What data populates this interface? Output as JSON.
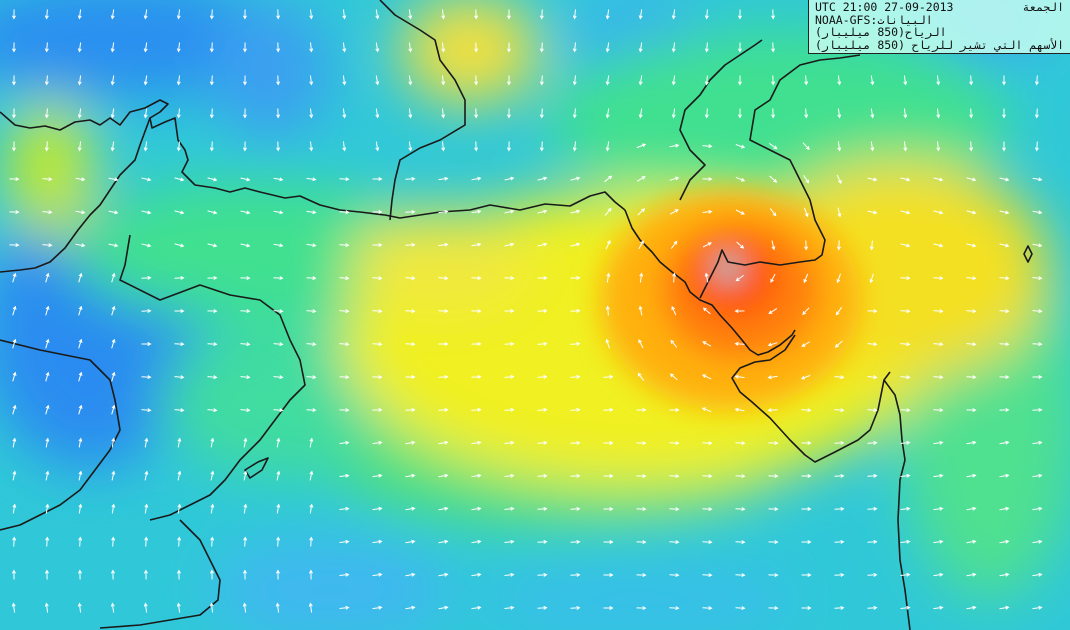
{
  "header": {
    "time_label": "UTC 21:00",
    "date": "27-09-2013",
    "weekday": "الجمعة",
    "source_label": "NOAA-GFS:",
    "source_caption": "البيانات",
    "layer1_value": "(850 ميليبار)",
    "layer1_name": "الرياح",
    "layer2_value": "(850 ميليبار)",
    "layer2_name": "الأسهم التي تشير للرياح"
  },
  "map": {
    "colors": {
      "calm": "#1e90ff",
      "low": "#20d0e0",
      "mid": "#40e080",
      "moderate": "#f0f000",
      "strong": "#ff9000",
      "extreme": "#ff5000",
      "coastline": "#1a1a1a",
      "arrows": "#ffffff"
    },
    "arrow_icon": "wind-arrow-icon"
  }
}
